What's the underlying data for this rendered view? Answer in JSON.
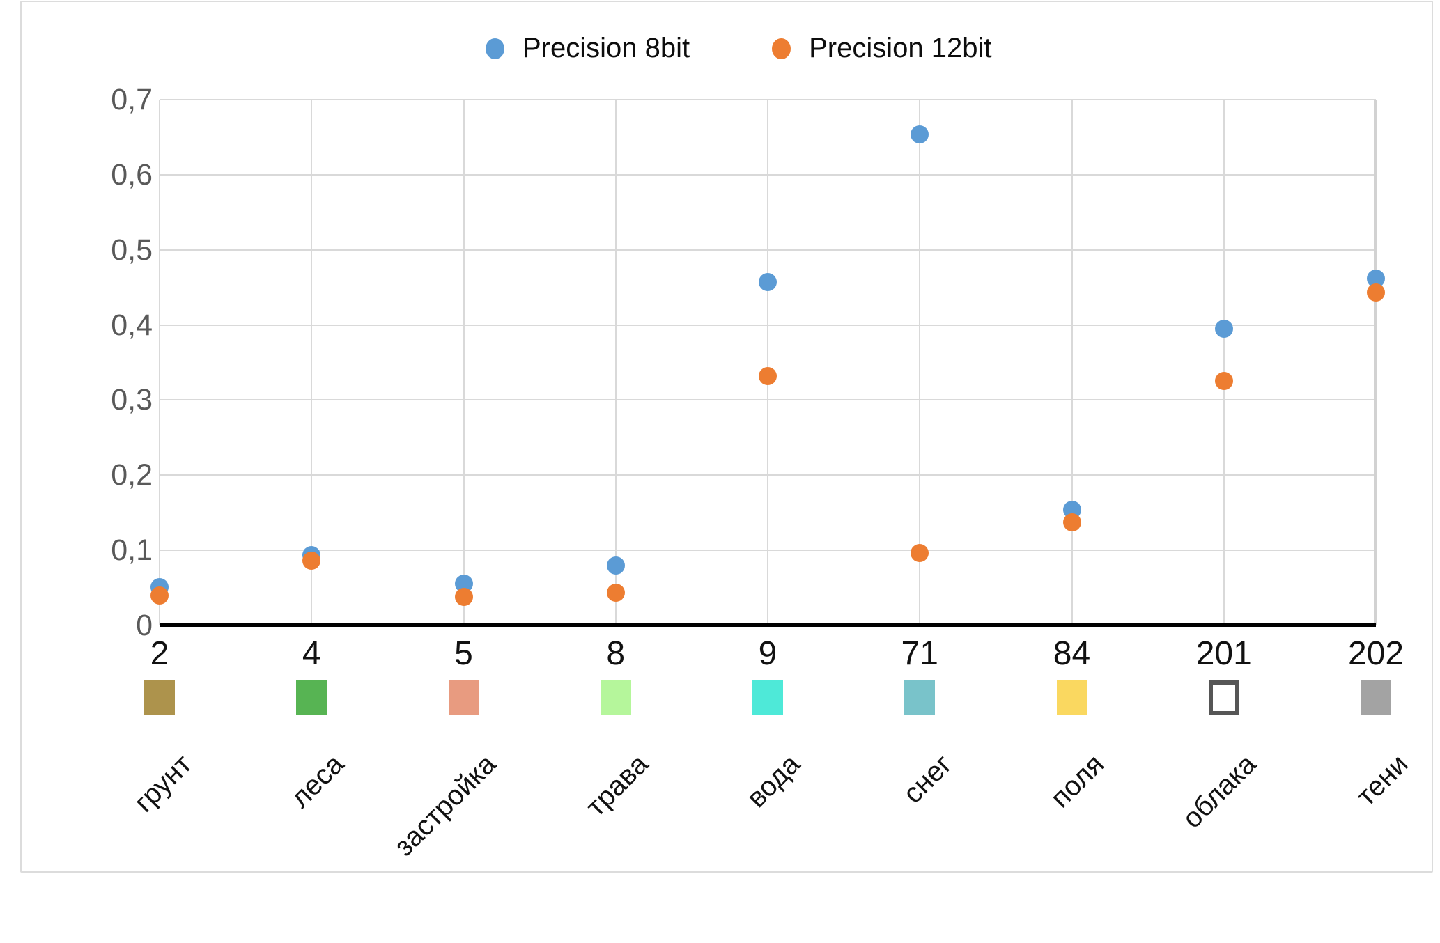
{
  "legend": [
    {
      "label": "Precision 8bit",
      "color": "#5B9BD5"
    },
    {
      "label": "Precision 12bit",
      "color": "#ED7D31"
    }
  ],
  "chart_data": {
    "type": "scatter",
    "title": "",
    "xlabel": "",
    "ylabel": "",
    "grid": true,
    "legend_position": "top",
    "categories": [
      "2",
      "4",
      "5",
      "8",
      "9",
      "71",
      "84",
      "201",
      "202"
    ],
    "category_names": [
      "грунт",
      "леса",
      "застройка",
      "трава",
      "вода",
      "снег",
      "поля",
      "облака",
      "тени"
    ],
    "category_swatches": [
      {
        "fill": "#AD934C"
      },
      {
        "fill": "#57B453"
      },
      {
        "fill": "#E89B80"
      },
      {
        "fill": "#B5F69B"
      },
      {
        "fill": "#4EE9D8"
      },
      {
        "fill": "#79C3CA"
      },
      {
        "fill": "#FAD860"
      },
      {
        "fill": "#FFFFFF",
        "border": "#565656"
      },
      {
        "fill": "#A3A3A3"
      }
    ],
    "series": [
      {
        "name": "Precision 8bit",
        "color": "#5B9BD5",
        "values": [
          0.051,
          0.094,
          0.056,
          0.08,
          0.457,
          0.654,
          0.154,
          0.395,
          0.462
        ]
      },
      {
        "name": "Precision 12bit",
        "color": "#ED7D31",
        "values": [
          0.04,
          0.086,
          0.038,
          0.044,
          0.332,
          0.096,
          0.137,
          0.325,
          0.443
        ]
      }
    ],
    "y_axis": {
      "min": 0,
      "max": 0.7,
      "step": 0.1,
      "tick_labels": [
        "0",
        "0,1",
        "0,2",
        "0,3",
        "0,4",
        "0,5",
        "0,6",
        "0,7"
      ]
    },
    "colors": {
      "gridline": "#D9D9D9",
      "axis_line": "#000000",
      "y_tick_text": "#595959",
      "x_tick_text": "#111111"
    }
  }
}
